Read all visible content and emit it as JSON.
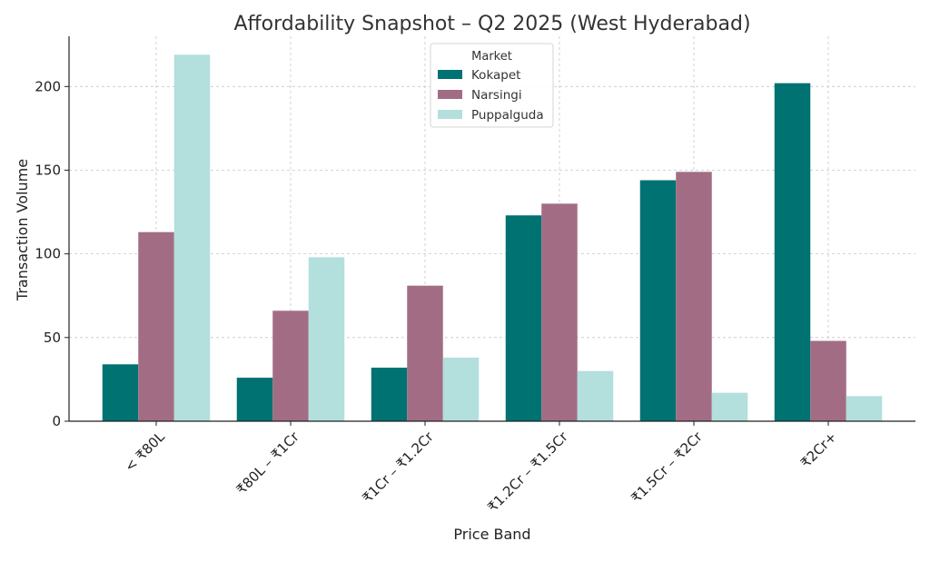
{
  "chart_data": {
    "type": "bar",
    "title": "Affordability Snapshot – Q2 2025 (West Hyderabad)",
    "xlabel": "Price Band",
    "ylabel": "Transaction Volume",
    "categories": [
      "< ₹80L",
      "₹80L – ₹1Cr",
      "₹1Cr – ₹1.2Cr",
      "₹1.2Cr – ₹1.5Cr",
      "₹1.5Cr – ₹2Cr",
      "₹2Cr+"
    ],
    "series": [
      {
        "name": "Kokapet",
        "color": "#007272",
        "values": [
          34,
          26,
          32,
          123,
          144,
          202
        ]
      },
      {
        "name": "Narsingi",
        "color": "#a26d84",
        "values": [
          113,
          66,
          81,
          130,
          149,
          48
        ]
      },
      {
        "name": "Puppalguda",
        "color": "#b3dfdd",
        "values": [
          219,
          98,
          38,
          30,
          17,
          15
        ]
      }
    ],
    "ylim": [
      0,
      230
    ],
    "yticks": [
      0,
      50,
      100,
      150,
      200
    ],
    "grid": true,
    "legend": {
      "title": "Market",
      "placement": "upper-center"
    }
  }
}
